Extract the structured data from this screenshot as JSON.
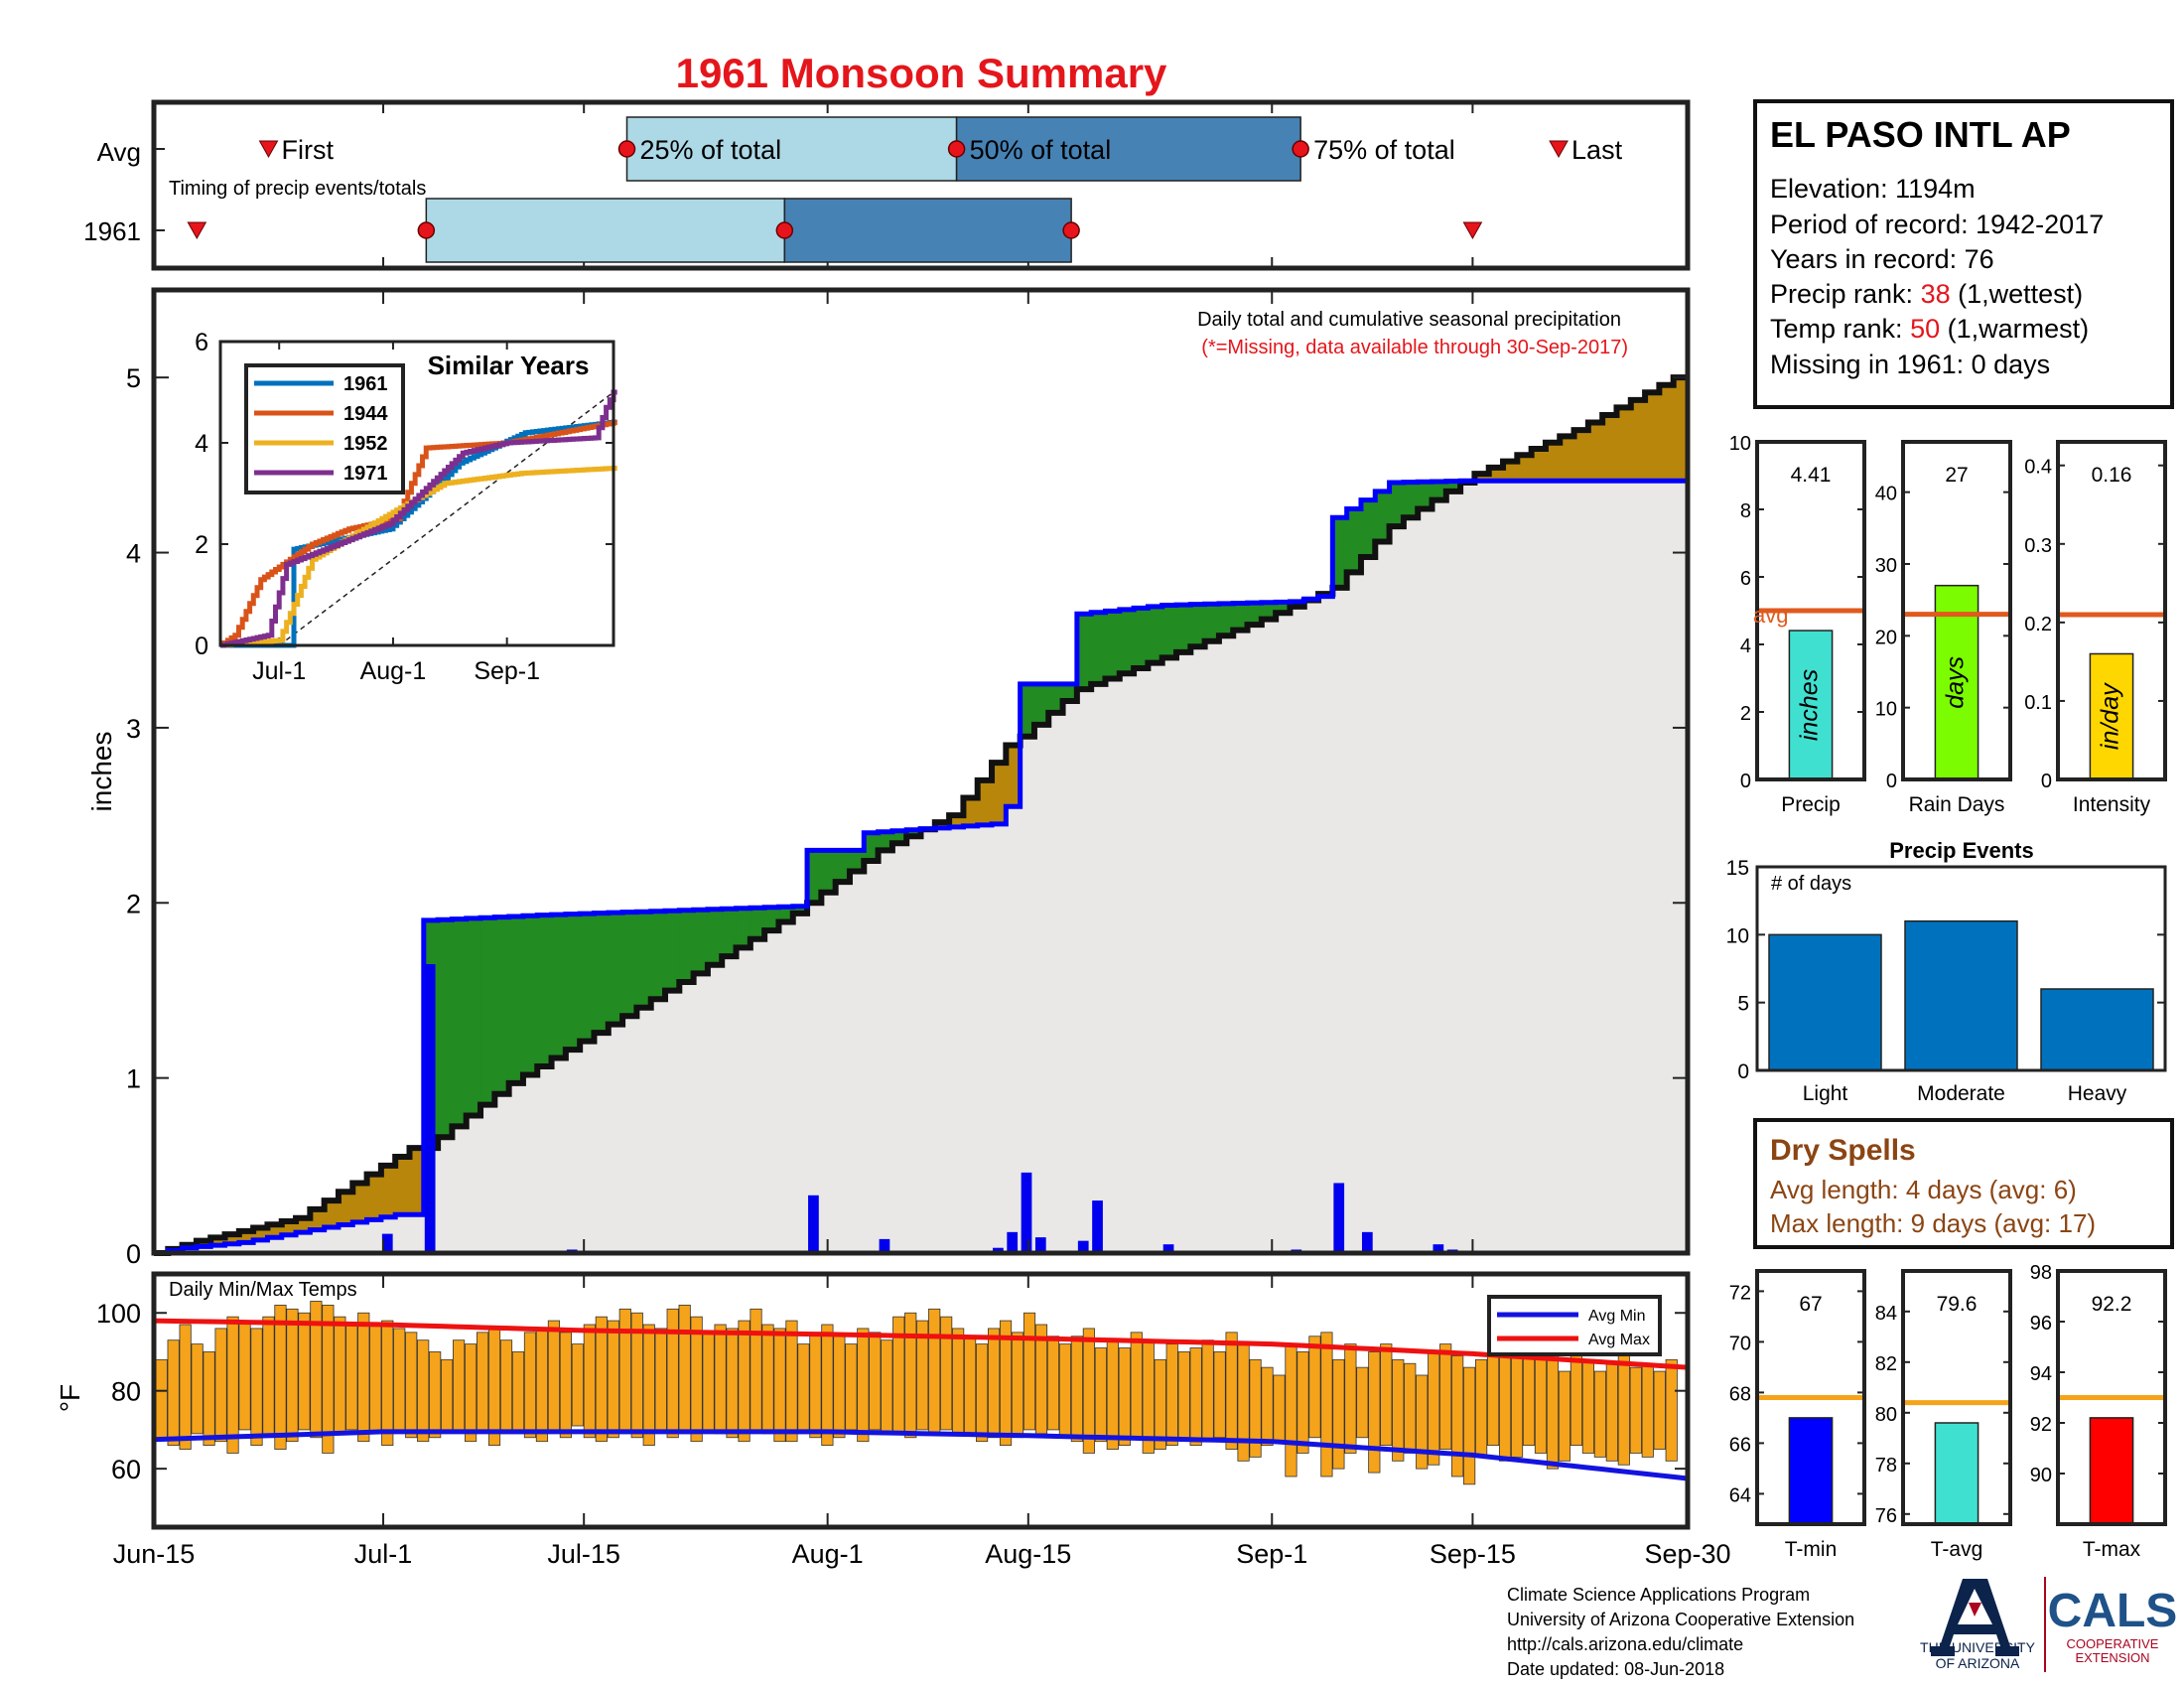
{
  "title": "1961 Monsoon Summary",
  "colors": {
    "title_red": "#e4161b",
    "year_box": "#add8e6",
    "avg_box": "#4682b4",
    "bar_blue": "#0000ee",
    "cum_line": "#0000ff",
    "green_fill": "#228b22",
    "brown_fill": "#b8860b",
    "area_fill": "#e9e8e6",
    "temp_bar": "#f5a31a",
    "avg_max_line": "#ee1111",
    "avg_min_line": "#1313e0",
    "avg_line_orange": "#e05a1e",
    "temp_avg_line": "#f5a31a",
    "precip_bar": "#40e0d0",
    "raindays_bar": "#7cfc00",
    "intensity_bar": "#ffd700",
    "events_bar": "#0072bd",
    "tmin_bar": "#0000ff",
    "tavg_bar": "#40e0d0",
    "tmax_bar": "#ff0000",
    "dry_text": "#8b4513",
    "rank_red": "#e4161b"
  },
  "timing": {
    "row_labels": [
      "Avg",
      "1961"
    ],
    "avg_labels": {
      "first": "First",
      "q25": "25% of total",
      "q50": "50% of total",
      "q75": "75% of total",
      "last": "Last"
    },
    "subtitle": "Timing of precip events/totals",
    "avg": {
      "first": "Jun-23",
      "q25": "Jul-18",
      "q50": "Aug-10",
      "q75": "Sep-03",
      "last": "Sep-21"
    },
    "year": {
      "first": "Jun-18",
      "q25": "Jul-04",
      "q50": "Jul-29",
      "q75": "Aug-18",
      "last": "Sep-15"
    }
  },
  "main_chart": {
    "note1": "Daily total and cumulative seasonal precipitation",
    "note2": "(*=Missing, data available through 30-Sep-2017)",
    "ylabel": "inches",
    "yticks": [
      "0",
      "1",
      "2",
      "3",
      "4",
      "5"
    ],
    "ylim": [
      0,
      5.5
    ],
    "xticks": [
      "Jun-15",
      "Jul-1",
      "Jul-15",
      "Aug-1",
      "Aug-15",
      "Sep-1",
      "Sep-15",
      "Sep-30"
    ]
  },
  "chart_data": [
    {
      "type": "line",
      "title": "Daily total and cumulative seasonal precipitation",
      "ylabel": "inches",
      "ylim": [
        0,
        5.5
      ],
      "series": [
        {
          "name": "1961 cumulative",
          "points": [
            [
              "Jun-15",
              0.0
            ],
            [
              "Jun-17",
              0.03
            ],
            [
              "Jun-21",
              0.06
            ],
            [
              "Jul-2",
              0.22
            ],
            [
              "Jul-3",
              0.22
            ],
            [
              "Jul-4",
              1.9
            ],
            [
              "Jul-12",
              1.93
            ],
            [
              "Jul-30",
              1.98
            ],
            [
              "Jul-31",
              2.3
            ],
            [
              "Aug-3",
              2.3
            ],
            [
              "Aug-4",
              2.4
            ],
            [
              "Aug-13",
              2.45
            ],
            [
              "Aug-14",
              2.55
            ],
            [
              "Aug-15",
              3.25
            ],
            [
              "Aug-18",
              3.25
            ],
            [
              "Aug-19",
              3.65
            ],
            [
              "Aug-25",
              3.7
            ],
            [
              "Sep-3",
              3.72
            ],
            [
              "Sep-5",
              3.75
            ],
            [
              "Sep-6",
              4.2
            ],
            [
              "Sep-10",
              4.4
            ],
            [
              "Sep-15",
              4.41
            ],
            [
              "Sep-30",
              4.41
            ]
          ]
        },
        {
          "name": "Avg cumulative",
          "points": [
            [
              "Jun-15",
              0.0
            ],
            [
              "Jun-18",
              0.07
            ],
            [
              "Jun-25",
              0.2
            ],
            [
              "Jul-3",
              0.6
            ],
            [
              "Jul-4",
              0.6
            ],
            [
              "Jul-10",
              0.97
            ],
            [
              "Jul-20",
              1.45
            ],
            [
              "Jul-30",
              1.94
            ],
            [
              "Aug-5",
              2.3
            ],
            [
              "Aug-10",
              2.5
            ],
            [
              "Aug-14",
              2.9
            ],
            [
              "Aug-15",
              2.95
            ],
            [
              "Aug-19",
              3.22
            ],
            [
              "Aug-25",
              3.4
            ],
            [
              "Sep-1",
              3.62
            ],
            [
              "Sep-6",
              3.8
            ],
            [
              "Sep-10",
              4.15
            ],
            [
              "Sep-16",
              4.45
            ],
            [
              "Sep-23",
              4.7
            ],
            [
              "Sep-30",
              5.0
            ]
          ]
        }
      ]
    },
    {
      "type": "bar",
      "title": "Daily precipitation (1961)",
      "ylabel": "inches",
      "x": [
        "Jul-1",
        "Jul-4",
        "Jul-12",
        "Jul-14",
        "Jul-31",
        "Aug-5",
        "Aug-13",
        "Aug-14",
        "Aug-15",
        "Aug-16",
        "Aug-19",
        "Aug-20",
        "Aug-25",
        "Sep-3",
        "Sep-6",
        "Sep-8",
        "Sep-13",
        "Sep-14"
      ],
      "values": [
        0.11,
        1.65,
        0.01,
        0.02,
        0.33,
        0.08,
        0.03,
        0.12,
        0.46,
        0.09,
        0.07,
        0.3,
        0.05,
        0.02,
        0.4,
        0.12,
        0.05,
        0.02
      ]
    },
    {
      "type": "line",
      "title": "Similar Years",
      "ylim": [
        0,
        6
      ],
      "xticks": [
        "Jul-1",
        "Aug-1",
        "Sep-1"
      ],
      "series": [
        {
          "name": "1961",
          "color": "#0072bd",
          "points": [
            [
              "Jun-15",
              0
            ],
            [
              "Jul-4",
              0
            ],
            [
              "Jul-5",
              1.9
            ],
            [
              "Jul-31",
              2.3
            ],
            [
              "Aug-15",
              3.3
            ],
            [
              "Aug-19",
              3.6
            ],
            [
              "Sep-6",
              4.2
            ],
            [
              "Sep-30",
              4.41
            ]
          ]
        },
        {
          "name": "1944",
          "color": "#d95319",
          "points": [
            [
              "Jun-15",
              0
            ],
            [
              "Jun-19",
              0.2
            ],
            [
              "Jun-26",
              1.3
            ],
            [
              "Jul-10",
              2.0
            ],
            [
              "Jul-20",
              2.3
            ],
            [
              "Aug-2",
              2.5
            ],
            [
              "Aug-10",
              3.9
            ],
            [
              "Sep-1",
              4.0
            ],
            [
              "Sep-30",
              4.4
            ]
          ]
        },
        {
          "name": "1952",
          "color": "#edb120",
          "points": [
            [
              "Jun-15",
              0
            ],
            [
              "Jul-1",
              0.1
            ],
            [
              "Jul-10",
              1.7
            ],
            [
              "Aug-5",
              2.8
            ],
            [
              "Aug-15",
              3.2
            ],
            [
              "Sep-5",
              3.4
            ],
            [
              "Sep-30",
              3.5
            ]
          ]
        },
        {
          "name": "1971",
          "color": "#7e2f8e",
          "points": [
            [
              "Jun-15",
              0
            ],
            [
              "Jun-28",
              0.2
            ],
            [
              "Jul-3",
              1.6
            ],
            [
              "Jul-31",
              2.4
            ],
            [
              "Aug-20",
              3.8
            ],
            [
              "Sep-1",
              4.0
            ],
            [
              "Sep-25",
              4.1
            ],
            [
              "Sep-28",
              4.7
            ],
            [
              "Sep-30",
              5.0
            ]
          ]
        }
      ]
    },
    {
      "type": "bar",
      "title": "Precip",
      "categories": [
        "Precip"
      ],
      "values": [
        4.41
      ],
      "avg": 5.0,
      "ylim": [
        0,
        10
      ]
    },
    {
      "type": "bar",
      "title": "Rain Days",
      "categories": [
        "Rain Days"
      ],
      "values": [
        27
      ],
      "avg": 23,
      "ylim": [
        0,
        47
      ]
    },
    {
      "type": "bar",
      "title": "Intensity",
      "categories": [
        "Intensity"
      ],
      "values": [
        0.16
      ],
      "avg": 0.21,
      "ylim": [
        0,
        0.43
      ]
    },
    {
      "type": "bar",
      "title": "Precip Events",
      "ylabel": "# of days",
      "categories": [
        "Light",
        "Moderate",
        "Heavy"
      ],
      "values": [
        10,
        11,
        6
      ],
      "ylim": [
        0,
        15
      ]
    },
    {
      "type": "bar",
      "title": "T-min",
      "categories": [
        "T-min"
      ],
      "values": [
        67
      ],
      "avg": 67.8,
      "ylim": [
        62.8,
        72.8
      ]
    },
    {
      "type": "bar",
      "title": "T-avg",
      "categories": [
        "T-avg"
      ],
      "values": [
        79.6
      ],
      "avg": 80.4,
      "ylim": [
        75.6,
        85.6
      ]
    },
    {
      "type": "bar",
      "title": "T-max",
      "categories": [
        "T-max"
      ],
      "values": [
        92.2
      ],
      "avg": 93.0,
      "ylim": [
        88.0,
        98.0
      ]
    },
    {
      "type": "bar",
      "title": "Daily Min/Max Temps",
      "ylabel": "°F",
      "ylim": [
        45,
        110
      ],
      "series": [
        {
          "name": "Avg Min",
          "points": [
            [
              "Jun-15",
              67.5
            ],
            [
              "Jul-1",
              69.5
            ],
            [
              "Aug-1",
              69.5
            ],
            [
              "Aug-15",
              68.5
            ],
            [
              "Sep-1",
              67
            ],
            [
              "Sep-15",
              63.5
            ],
            [
              "Sep-30",
              57.5
            ]
          ]
        },
        {
          "name": "Avg Max",
          "points": [
            [
              "Jun-15",
              98
            ],
            [
              "Jul-1",
              97
            ],
            [
              "Jul-15",
              95.5
            ],
            [
              "Aug-1",
              94.5
            ],
            [
              "Aug-15",
              93.5
            ],
            [
              "Sep-1",
              92
            ],
            [
              "Sep-15",
              89.5
            ],
            [
              "Sep-30",
              86
            ]
          ]
        },
        {
          "name": "Daily Max 1961",
          "values": [
            88,
            93,
            97,
            92,
            90,
            96,
            99,
            98,
            96,
            99,
            102,
            101,
            100,
            103,
            102,
            99,
            97,
            100,
            97,
            98,
            96,
            95,
            93,
            90,
            88,
            93,
            92,
            95,
            96,
            93,
            90,
            95,
            96,
            98,
            95,
            92,
            97,
            99,
            98,
            101,
            100,
            97,
            96,
            101,
            102,
            99,
            95,
            97,
            96,
            98,
            101,
            97,
            96,
            98,
            92,
            95,
            97,
            94,
            92,
            96,
            95,
            93,
            99,
            100,
            98,
            101,
            99,
            96,
            94,
            92,
            96,
            98,
            95,
            100,
            97,
            94,
            92,
            94,
            96,
            91,
            93,
            91,
            95,
            93,
            88,
            92,
            90,
            91,
            93,
            90,
            95,
            92,
            88,
            86,
            84,
            92,
            90,
            94,
            95,
            88,
            92,
            86,
            90,
            92,
            88,
            87,
            84,
            90,
            92,
            89,
            86,
            88,
            94,
            91,
            90,
            93,
            88,
            89,
            85,
            90,
            88,
            85,
            87,
            89,
            86,
            87,
            85,
            88
          ]
        },
        {
          "name": "Daily Min 1961",
          "values": [
            68,
            66,
            65,
            69,
            66,
            67,
            64,
            70,
            66,
            68,
            65,
            67,
            70,
            68,
            64,
            69,
            70,
            67,
            69,
            66,
            70,
            68,
            67,
            68,
            70,
            70,
            67,
            70,
            66,
            69,
            69,
            68,
            67,
            70,
            68,
            71,
            68,
            67,
            68,
            69,
            68,
            66,
            70,
            68,
            69,
            67,
            70,
            69,
            68,
            67,
            70,
            69,
            67,
            67,
            69,
            68,
            66,
            68,
            70,
            67,
            70,
            69,
            69,
            68,
            70,
            69,
            70,
            69,
            69,
            67,
            68,
            66,
            68,
            70,
            69,
            70,
            68,
            67,
            64,
            67,
            65,
            66,
            68,
            64,
            65,
            66,
            68,
            66,
            67,
            68,
            65,
            62,
            63,
            66,
            67,
            58,
            64,
            68,
            58,
            60,
            64,
            68,
            59,
            66,
            62,
            64,
            60,
            61,
            65,
            58,
            56,
            63,
            66,
            62,
            63,
            66,
            64,
            60,
            62,
            66,
            64,
            63,
            62,
            61,
            64,
            63,
            65,
            62,
            66,
            64,
            62,
            66,
            63,
            68,
            64,
            66,
            64,
            65,
            68,
            66,
            62
          ]
        }
      ]
    }
  ],
  "station": {
    "name": "EL PASO INTL AP",
    "elevation": "Elevation: 1194m",
    "period": "Period of record: 1942-2017",
    "years": "Years in record: 76",
    "precip_rank_label": "Precip rank: ",
    "precip_rank_value": "38",
    "precip_rank_suffix": " (1,wettest)",
    "temp_rank_label": "Temp rank: ",
    "temp_rank_value": "50",
    "temp_rank_suffix": " (1,warmest)",
    "missing": "Missing in 1961: 0 days"
  },
  "stats": {
    "precip_value": "4.41",
    "precip_unit": "inches",
    "precip_label": "Precip",
    "avg_label": "avg",
    "raindays_value": "27",
    "raindays_unit": "days",
    "raindays_label": "Rain Days",
    "intensity_value": "0.16",
    "intensity_unit": "in/day",
    "intensity_label": "Intensity",
    "precip_yticks": [
      "0",
      "2",
      "4",
      "6",
      "8",
      "10"
    ],
    "raindays_yticks": [
      "0",
      "10",
      "20",
      "30",
      "40"
    ],
    "intensity_yticks": [
      "0",
      "0.1",
      "0.2",
      "0.3",
      "0.4"
    ]
  },
  "events": {
    "title": "Precip Events",
    "ylabel": "# of days",
    "yticks": [
      "0",
      "5",
      "10",
      "15"
    ]
  },
  "dry": {
    "title": "Dry Spells",
    "avg": "Avg length: 4 days (avg: 6)",
    "max": "Max length: 9 days (avg: 17)"
  },
  "temps": {
    "title": "Daily Min/Max Temps",
    "ylabel": "°F",
    "yticks": [
      "60",
      "80",
      "100"
    ],
    "legend_min": "Avg Min",
    "legend_max": "Avg Max"
  },
  "tstats": {
    "tmin_value": "67",
    "tmin_label": "T-min",
    "tmin_yticks": [
      "64",
      "66",
      "68",
      "70",
      "72"
    ],
    "tavg_value": "79.6",
    "tavg_label": "T-avg",
    "tavg_yticks": [
      "76",
      "78",
      "80",
      "82",
      "84"
    ],
    "tmax_value": "92.2",
    "tmax_label": "T-max",
    "tmax_yticks": [
      "90",
      "92",
      "94",
      "96",
      "98"
    ]
  },
  "similar": {
    "title": "Similar Years",
    "yticks": [
      "0",
      "2",
      "4",
      "6"
    ],
    "xticks": [
      "Jul-1",
      "Aug-1",
      "Sep-1"
    ]
  },
  "footer": {
    "line1": "Climate Science Applications Program",
    "line2": "University of Arizona Cooperative Extension",
    "line3": "http://cals.arizona.edu/climate",
    "line4": " Date updated: 08-Jun-2018",
    "ua_line1": "THE UNIVERSITY",
    "ua_line2": "OF ARIZONA",
    "cals": "CALS",
    "cals_sub1": "COOPERATIVE",
    "cals_sub2": "EXTENSION"
  }
}
